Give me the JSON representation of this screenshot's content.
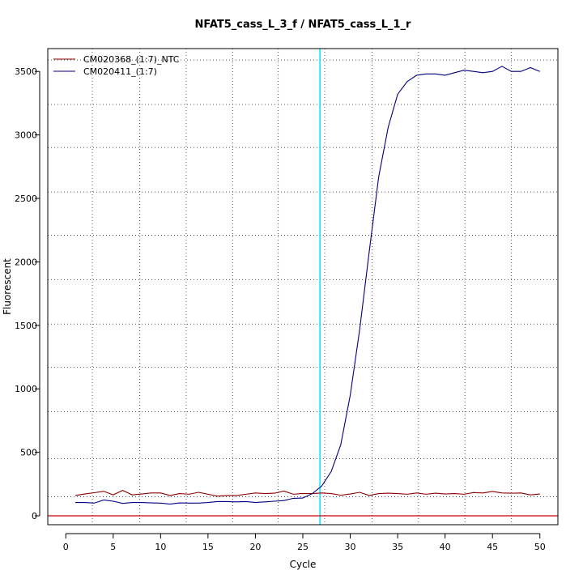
{
  "chart_data": {
    "type": "line",
    "title": "NFAT5_cass_L_3_f / NFAT5_cass_L_1_r",
    "xlabel": "Cycle",
    "ylabel": "Fluorescent",
    "xlim": [
      -1.9,
      51.9
    ],
    "ylim": [
      -70,
      3680
    ],
    "xticks": [
      0,
      5,
      10,
      15,
      20,
      25,
      30,
      35,
      40,
      45,
      50
    ],
    "yticks": [
      0,
      500,
      1000,
      1500,
      2000,
      2500,
      3000,
      3500
    ],
    "grid": true,
    "grid_x": [
      2.8,
      7.8,
      12.7,
      17.6,
      22.4,
      27.3,
      32.3,
      37.2,
      42.1,
      47.0
    ],
    "grid_y": [
      150,
      450,
      820,
      1170,
      1510,
      1860,
      2210,
      2550,
      2900,
      3240,
      3590
    ],
    "legend_position": "top-left",
    "threshold_cycle": 26.8,
    "threshold_color": "#00e5ee",
    "baseline": 0,
    "baseline_color": "#cc0000",
    "series": [
      {
        "name": "CM020368_(1:7)_NTC",
        "color": "#8b0000",
        "x": [
          1,
          2,
          3,
          4,
          5,
          6,
          7,
          8,
          9,
          10,
          11,
          12,
          13,
          14,
          15,
          16,
          17,
          18,
          19,
          20,
          21,
          22,
          23,
          24,
          25,
          26,
          27,
          28,
          29,
          30,
          31,
          32,
          33,
          34,
          35,
          36,
          37,
          38,
          39,
          40,
          41,
          42,
          43,
          44,
          45,
          46,
          47,
          48,
          49,
          50
        ],
        "values": [
          160,
          172,
          182,
          193,
          165,
          200,
          165,
          172,
          180,
          180,
          160,
          175,
          170,
          185,
          170,
          155,
          160,
          160,
          170,
          180,
          175,
          178,
          195,
          170,
          176,
          175,
          180,
          175,
          162,
          172,
          185,
          160,
          175,
          178,
          175,
          170,
          180,
          170,
          178,
          172,
          175,
          170,
          183,
          180,
          192,
          180,
          178,
          180,
          165,
          172
        ]
      },
      {
        "name": "CM020411_(1:7)",
        "color": "#000080",
        "x": [
          1,
          2,
          3,
          4,
          5,
          6,
          7,
          8,
          9,
          10,
          11,
          12,
          13,
          14,
          15,
          16,
          17,
          18,
          19,
          20,
          21,
          22,
          23,
          24,
          25,
          26,
          27,
          28,
          29,
          30,
          31,
          32,
          33,
          34,
          35,
          36,
          37,
          38,
          39,
          40,
          41,
          42,
          43,
          44,
          45,
          46,
          47,
          48,
          49,
          50
        ],
        "values": [
          105,
          105,
          100,
          125,
          115,
          98,
          105,
          105,
          102,
          100,
          92,
          102,
          100,
          100,
          105,
          112,
          112,
          110,
          112,
          105,
          110,
          115,
          120,
          138,
          140,
          175,
          235,
          350,
          560,
          950,
          1470,
          2080,
          2670,
          3060,
          3320,
          3420,
          3470,
          3480,
          3480,
          3470,
          3490,
          3510,
          3500,
          3490,
          3500,
          3540,
          3500,
          3500,
          3530,
          3500
        ]
      }
    ]
  }
}
